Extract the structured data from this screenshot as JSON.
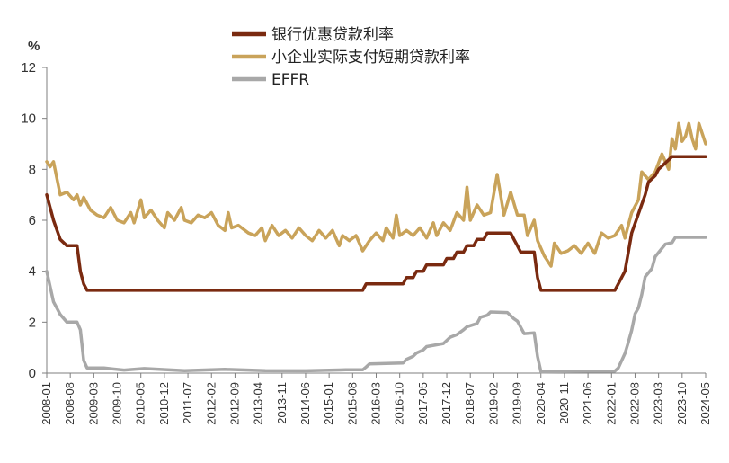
{
  "chart_data": {
    "type": "line",
    "unit_label": "%",
    "ylim": [
      0,
      12
    ],
    "y_ticks": [
      0,
      2,
      4,
      6,
      8,
      10,
      12
    ],
    "x_start": "2008-01",
    "x_end": "2024-05",
    "x_tick_labels": [
      "2008-01",
      "2008-08",
      "2009-03",
      "2009-10",
      "2010-05",
      "2010-12",
      "2011-07",
      "2012-02",
      "2012-09",
      "2013-04",
      "2013-11",
      "2014-06",
      "2015-01",
      "2015-08",
      "2016-03",
      "2016-10",
      "2017-05",
      "2017-12",
      "2018-07",
      "2019-02",
      "2019-09",
      "2020-04",
      "2020-11",
      "2021-06",
      "2022-01",
      "2022-08",
      "2023-03",
      "2023-10",
      "2024-05"
    ],
    "grid": false,
    "legend_position": "top",
    "series": [
      {
        "name": "银行优惠贷款利率",
        "color": "#7a2a10",
        "points": [
          [
            "2008-01",
            7.0
          ],
          [
            "2008-03",
            6.0
          ],
          [
            "2008-05",
            5.25
          ],
          [
            "2008-07",
            5.0
          ],
          [
            "2008-10",
            5.0
          ],
          [
            "2008-11",
            4.0
          ],
          [
            "2008-12",
            3.5
          ],
          [
            "2009-01",
            3.25
          ],
          [
            "2015-11",
            3.25
          ],
          [
            "2015-12",
            3.5
          ],
          [
            "2016-11",
            3.5
          ],
          [
            "2016-12",
            3.75
          ],
          [
            "2017-02",
            3.75
          ],
          [
            "2017-03",
            4.0
          ],
          [
            "2017-05",
            4.0
          ],
          [
            "2017-06",
            4.25
          ],
          [
            "2017-11",
            4.25
          ],
          [
            "2017-12",
            4.5
          ],
          [
            "2018-02",
            4.5
          ],
          [
            "2018-03",
            4.75
          ],
          [
            "2018-05",
            4.75
          ],
          [
            "2018-06",
            5.0
          ],
          [
            "2018-08",
            5.0
          ],
          [
            "2018-09",
            5.25
          ],
          [
            "2018-11",
            5.25
          ],
          [
            "2018-12",
            5.5
          ],
          [
            "2019-07",
            5.5
          ],
          [
            "2019-08",
            5.25
          ],
          [
            "2019-09",
            5.0
          ],
          [
            "2019-10",
            4.75
          ],
          [
            "2020-02",
            4.75
          ],
          [
            "2020-03",
            3.75
          ],
          [
            "2020-04",
            3.25
          ],
          [
            "2022-02",
            3.25
          ],
          [
            "2022-03",
            3.5
          ],
          [
            "2022-05",
            4.0
          ],
          [
            "2022-06",
            4.75
          ],
          [
            "2022-07",
            5.5
          ],
          [
            "2022-09",
            6.25
          ],
          [
            "2022-11",
            7.0
          ],
          [
            "2022-12",
            7.5
          ],
          [
            "2023-02",
            7.75
          ],
          [
            "2023-03",
            8.0
          ],
          [
            "2023-05",
            8.25
          ],
          [
            "2023-07",
            8.5
          ],
          [
            "2024-05",
            8.5
          ]
        ]
      },
      {
        "name": "小企业实际支付短期贷款利率",
        "color": "#c9a35a",
        "points": [
          [
            "2008-01",
            8.3
          ],
          [
            "2008-02",
            8.1
          ],
          [
            "2008-03",
            8.3
          ],
          [
            "2008-05",
            7.0
          ],
          [
            "2008-07",
            7.1
          ],
          [
            "2008-09",
            6.8
          ],
          [
            "2008-10",
            7.0
          ],
          [
            "2008-11",
            6.6
          ],
          [
            "2008-12",
            6.9
          ],
          [
            "2009-02",
            6.4
          ],
          [
            "2009-04",
            6.2
          ],
          [
            "2009-06",
            6.1
          ],
          [
            "2009-08",
            6.5
          ],
          [
            "2009-10",
            6.0
          ],
          [
            "2009-12",
            5.9
          ],
          [
            "2010-02",
            6.3
          ],
          [
            "2010-03",
            5.9
          ],
          [
            "2010-05",
            6.8
          ],
          [
            "2010-06",
            6.1
          ],
          [
            "2010-08",
            6.4
          ],
          [
            "2010-10",
            6.0
          ],
          [
            "2010-12",
            5.7
          ],
          [
            "2011-01",
            6.3
          ],
          [
            "2011-03",
            6.0
          ],
          [
            "2011-05",
            6.5
          ],
          [
            "2011-06",
            6.0
          ],
          [
            "2011-08",
            5.9
          ],
          [
            "2011-10",
            6.2
          ],
          [
            "2011-12",
            6.1
          ],
          [
            "2012-02",
            6.3
          ],
          [
            "2012-04",
            5.8
          ],
          [
            "2012-06",
            5.6
          ],
          [
            "2012-07",
            6.3
          ],
          [
            "2012-08",
            5.7
          ],
          [
            "2012-10",
            5.8
          ],
          [
            "2013-01",
            5.5
          ],
          [
            "2013-03",
            5.4
          ],
          [
            "2013-05",
            5.7
          ],
          [
            "2013-06",
            5.2
          ],
          [
            "2013-08",
            5.8
          ],
          [
            "2013-10",
            5.4
          ],
          [
            "2013-12",
            5.6
          ],
          [
            "2014-02",
            5.3
          ],
          [
            "2014-04",
            5.7
          ],
          [
            "2014-06",
            5.4
          ],
          [
            "2014-08",
            5.2
          ],
          [
            "2014-10",
            5.6
          ],
          [
            "2014-12",
            5.3
          ],
          [
            "2015-02",
            5.6
          ],
          [
            "2015-04",
            5.0
          ],
          [
            "2015-05",
            5.4
          ],
          [
            "2015-07",
            5.2
          ],
          [
            "2015-09",
            5.4
          ],
          [
            "2015-11",
            4.8
          ],
          [
            "2016-01",
            5.2
          ],
          [
            "2016-03",
            5.5
          ],
          [
            "2016-05",
            5.2
          ],
          [
            "2016-06",
            5.7
          ],
          [
            "2016-08",
            5.3
          ],
          [
            "2016-09",
            6.2
          ],
          [
            "2016-10",
            5.4
          ],
          [
            "2016-12",
            5.6
          ],
          [
            "2017-02",
            5.4
          ],
          [
            "2017-04",
            5.7
          ],
          [
            "2017-06",
            5.3
          ],
          [
            "2017-08",
            5.9
          ],
          [
            "2017-09",
            5.4
          ],
          [
            "2017-11",
            5.9
          ],
          [
            "2018-01",
            5.6
          ],
          [
            "2018-03",
            6.3
          ],
          [
            "2018-05",
            6.0
          ],
          [
            "2018-06",
            7.3
          ],
          [
            "2018-07",
            6.0
          ],
          [
            "2018-09",
            6.6
          ],
          [
            "2018-11",
            6.2
          ],
          [
            "2019-01",
            6.3
          ],
          [
            "2019-03",
            7.8
          ],
          [
            "2019-05",
            6.2
          ],
          [
            "2019-07",
            7.1
          ],
          [
            "2019-09",
            6.2
          ],
          [
            "2019-11",
            6.2
          ],
          [
            "2019-12",
            5.4
          ],
          [
            "2020-02",
            6.0
          ],
          [
            "2020-03",
            5.2
          ],
          [
            "2020-05",
            4.6
          ],
          [
            "2020-07",
            4.2
          ],
          [
            "2020-08",
            5.1
          ],
          [
            "2020-10",
            4.7
          ],
          [
            "2020-12",
            4.8
          ],
          [
            "2021-02",
            5.0
          ],
          [
            "2021-04",
            4.7
          ],
          [
            "2021-06",
            5.1
          ],
          [
            "2021-08",
            4.7
          ],
          [
            "2021-10",
            5.5
          ],
          [
            "2021-12",
            5.3
          ],
          [
            "2022-02",
            5.4
          ],
          [
            "2022-04",
            5.8
          ],
          [
            "2022-05",
            5.3
          ],
          [
            "2022-07",
            6.3
          ],
          [
            "2022-09",
            6.8
          ],
          [
            "2022-10",
            7.9
          ],
          [
            "2022-12",
            7.6
          ],
          [
            "2023-02",
            7.9
          ],
          [
            "2023-04",
            8.6
          ],
          [
            "2023-06",
            8.0
          ],
          [
            "2023-07",
            9.2
          ],
          [
            "2023-08",
            8.8
          ],
          [
            "2023-09",
            9.8
          ],
          [
            "2023-10",
            9.1
          ],
          [
            "2023-11",
            9.3
          ],
          [
            "2023-12",
            9.8
          ],
          [
            "2024-01",
            9.2
          ],
          [
            "2024-02",
            8.8
          ],
          [
            "2024-03",
            9.8
          ],
          [
            "2024-05",
            9.0
          ]
        ]
      },
      {
        "name": "EFFR",
        "color": "#a8a8a8",
        "points": [
          [
            "2008-01",
            4.0
          ],
          [
            "2008-03",
            2.8
          ],
          [
            "2008-05",
            2.3
          ],
          [
            "2008-07",
            2.0
          ],
          [
            "2008-10",
            2.0
          ],
          [
            "2008-11",
            1.7
          ],
          [
            "2008-12",
            0.5
          ],
          [
            "2009-01",
            0.2
          ],
          [
            "2009-06",
            0.2
          ],
          [
            "2009-12",
            0.12
          ],
          [
            "2010-06",
            0.18
          ],
          [
            "2011-06",
            0.1
          ],
          [
            "2012-06",
            0.15
          ],
          [
            "2013-06",
            0.1
          ],
          [
            "2014-06",
            0.09
          ],
          [
            "2015-06",
            0.13
          ],
          [
            "2015-11",
            0.13
          ],
          [
            "2015-12",
            0.24
          ],
          [
            "2016-01",
            0.36
          ],
          [
            "2016-11",
            0.4
          ],
          [
            "2016-12",
            0.54
          ],
          [
            "2017-02",
            0.66
          ],
          [
            "2017-03",
            0.79
          ],
          [
            "2017-05",
            0.91
          ],
          [
            "2017-06",
            1.04
          ],
          [
            "2017-11",
            1.16
          ],
          [
            "2018-01",
            1.41
          ],
          [
            "2018-03",
            1.51
          ],
          [
            "2018-05",
            1.7
          ],
          [
            "2018-06",
            1.82
          ],
          [
            "2018-09",
            1.95
          ],
          [
            "2018-10",
            2.19
          ],
          [
            "2018-12",
            2.27
          ],
          [
            "2019-01",
            2.4
          ],
          [
            "2019-06",
            2.38
          ],
          [
            "2019-08",
            2.13
          ],
          [
            "2019-09",
            2.04
          ],
          [
            "2019-11",
            1.55
          ],
          [
            "2020-02",
            1.58
          ],
          [
            "2020-03",
            0.65
          ],
          [
            "2020-04",
            0.05
          ],
          [
            "2021-06",
            0.08
          ],
          [
            "2022-02",
            0.08
          ],
          [
            "2022-03",
            0.2
          ],
          [
            "2022-05",
            0.77
          ],
          [
            "2022-06",
            1.21
          ],
          [
            "2022-07",
            1.68
          ],
          [
            "2022-08",
            2.33
          ],
          [
            "2022-09",
            2.56
          ],
          [
            "2022-10",
            3.08
          ],
          [
            "2022-11",
            3.78
          ],
          [
            "2023-01",
            4.1
          ],
          [
            "2023-02",
            4.57
          ],
          [
            "2023-05",
            5.06
          ],
          [
            "2023-07",
            5.12
          ],
          [
            "2023-08",
            5.33
          ],
          [
            "2024-05",
            5.33
          ]
        ]
      }
    ]
  }
}
